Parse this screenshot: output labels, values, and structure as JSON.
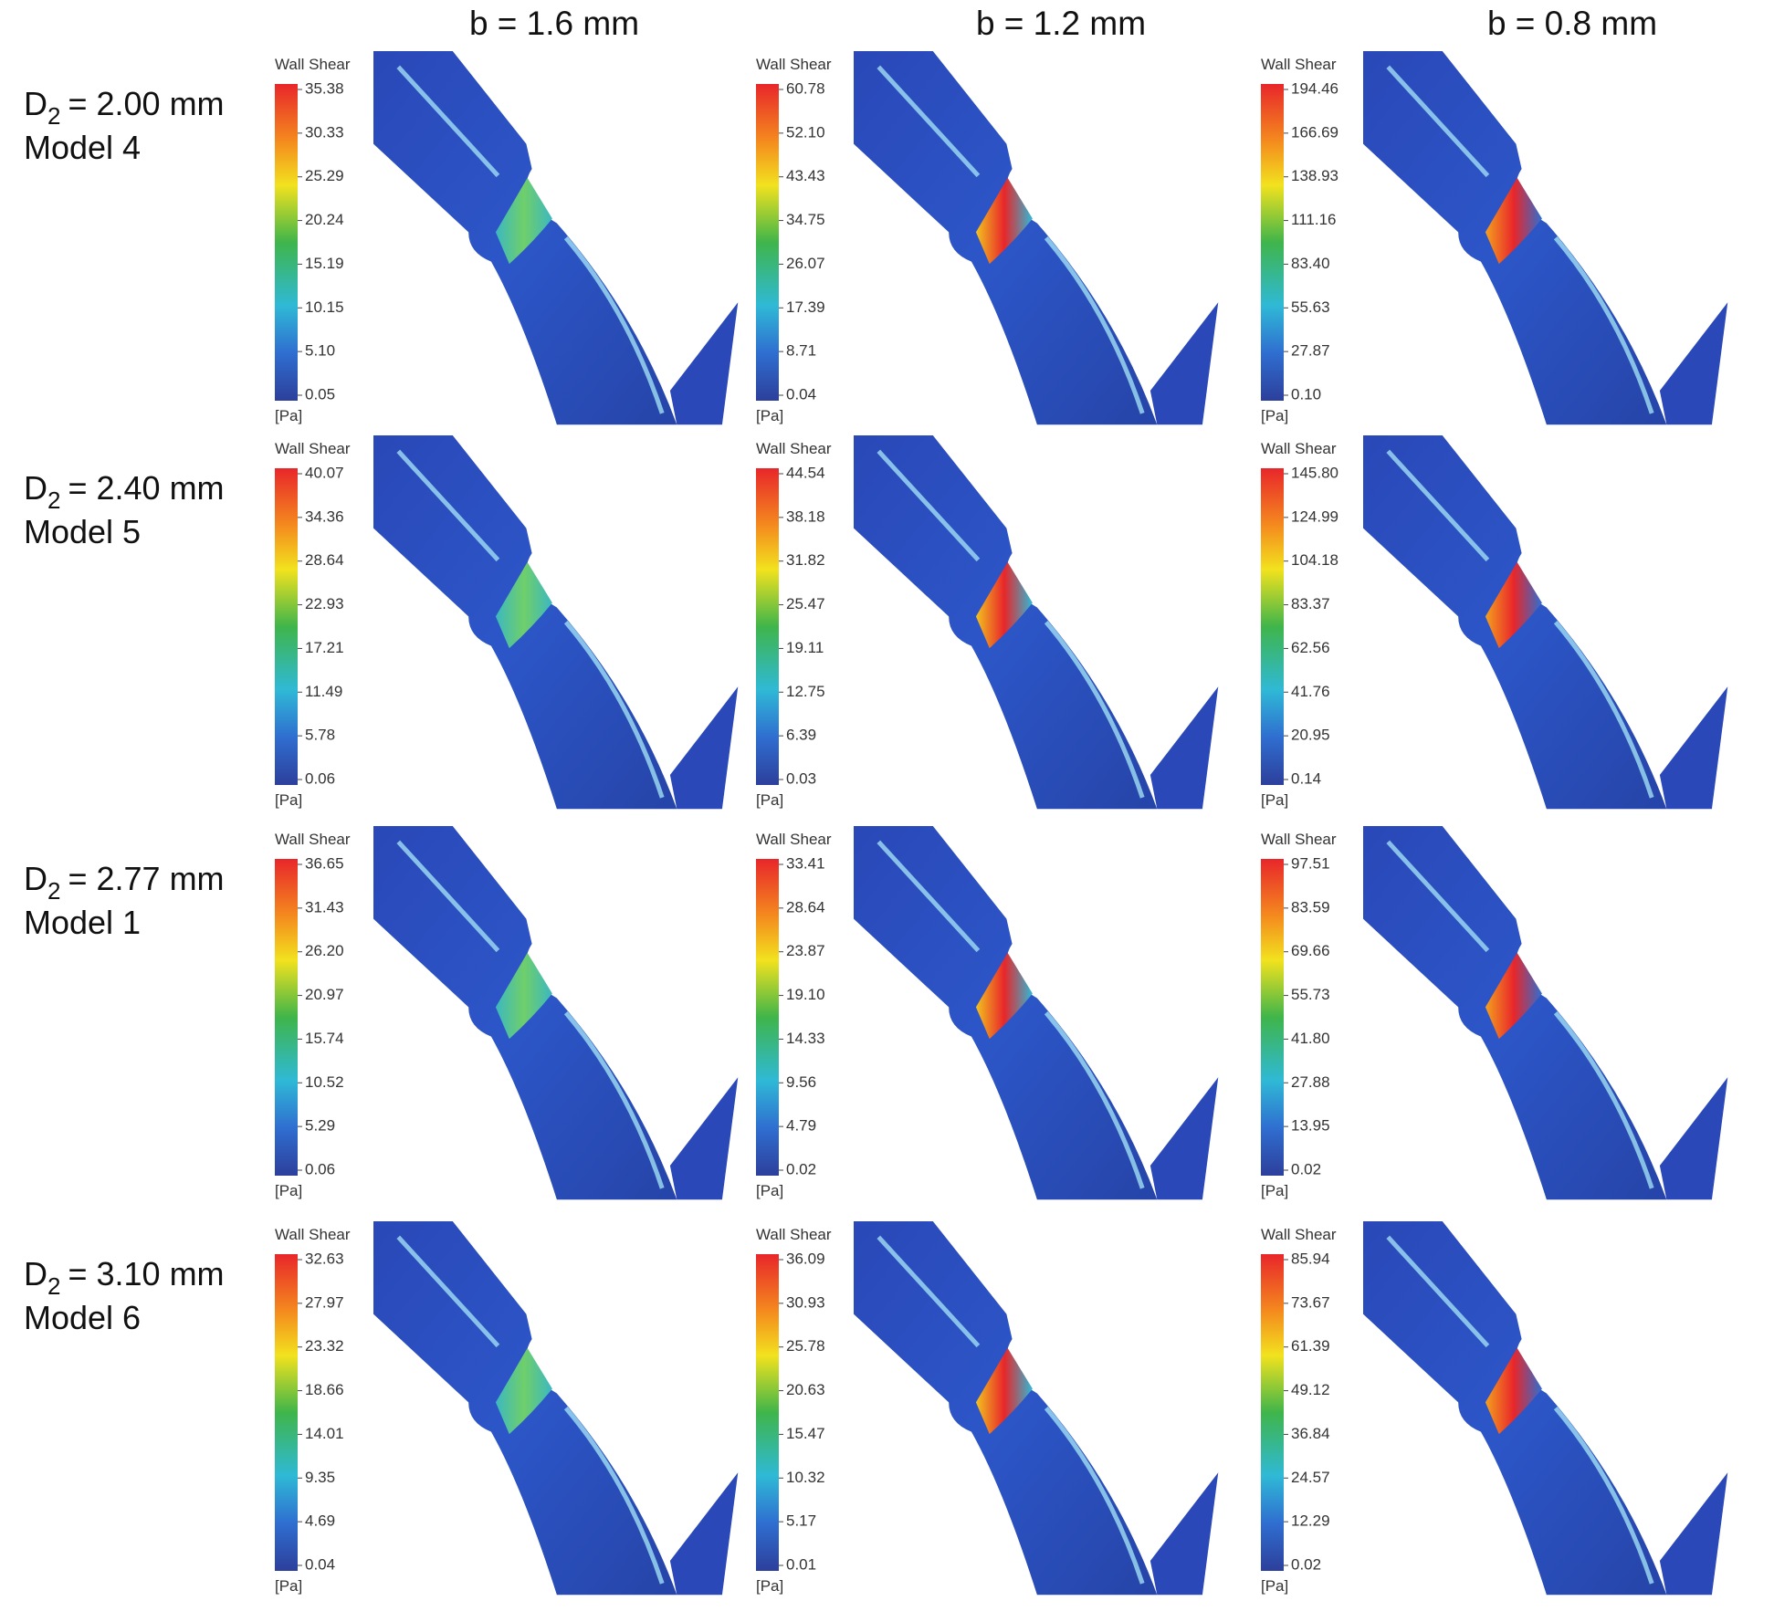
{
  "column_headers": [
    "b = 1.6 mm",
    "b = 1.2 mm",
    "b = 0.8 mm"
  ],
  "rows": [
    {
      "label": {
        "symbol": "D",
        "subscript": "2",
        "text": "= 2.00 mm"
      },
      "model": "Model 4",
      "panels": [
        {
          "legend_title": "Wall Shear",
          "unit": "[Pa]",
          "ticks": [
            "35.38",
            "30.33",
            "25.29",
            "20.24",
            "15.19",
            "10.15",
            "5.10",
            "0.05"
          ]
        },
        {
          "legend_title": "Wall Shear",
          "unit": "[Pa]",
          "ticks": [
            "60.78",
            "52.10",
            "43.43",
            "34.75",
            "26.07",
            "17.39",
            "8.71",
            "0.04"
          ]
        },
        {
          "legend_title": "Wall Shear",
          "unit": "[Pa]",
          "ticks": [
            "194.46",
            "166.69",
            "138.93",
            "111.16",
            "83.40",
            "55.63",
            "27.87",
            "0.10"
          ]
        }
      ]
    },
    {
      "label": {
        "symbol": "D",
        "subscript": "2",
        "text": "= 2.40 mm"
      },
      "model": "Model 5",
      "panels": [
        {
          "legend_title": "Wall Shear",
          "unit": "[Pa]",
          "ticks": [
            "40.07",
            "34.36",
            "28.64",
            "22.93",
            "17.21",
            "11.49",
            "5.78",
            "0.06"
          ]
        },
        {
          "legend_title": "Wall Shear",
          "unit": "[Pa]",
          "ticks": [
            "44.54",
            "38.18",
            "31.82",
            "25.47",
            "19.11",
            "12.75",
            "6.39",
            "0.03"
          ]
        },
        {
          "legend_title": "Wall Shear",
          "unit": "[Pa]",
          "ticks": [
            "145.80",
            "124.99",
            "104.18",
            "83.37",
            "62.56",
            "41.76",
            "20.95",
            "0.14"
          ]
        }
      ]
    },
    {
      "label": {
        "symbol": "D",
        "subscript": "2",
        "text": "= 2.77 mm"
      },
      "model": "Model 1",
      "panels": [
        {
          "legend_title": "Wall Shear",
          "unit": "[Pa]",
          "ticks": [
            "36.65",
            "31.43",
            "26.20",
            "20.97",
            "15.74",
            "10.52",
            "5.29",
            "0.06"
          ]
        },
        {
          "legend_title": "Wall Shear",
          "unit": "[Pa]",
          "ticks": [
            "33.41",
            "28.64",
            "23.87",
            "19.10",
            "14.33",
            "9.56",
            "4.79",
            "0.02"
          ]
        },
        {
          "legend_title": "Wall Shear",
          "unit": "[Pa]",
          "ticks": [
            "97.51",
            "83.59",
            "69.66",
            "55.73",
            "41.80",
            "27.88",
            "13.95",
            "0.02"
          ]
        }
      ]
    },
    {
      "label": {
        "symbol": "D",
        "subscript": "2",
        "text": "= 3.10 mm"
      },
      "model": "Model 6",
      "panels": [
        {
          "legend_title": "Wall Shear",
          "unit": "[Pa]",
          "ticks": [
            "32.63",
            "27.97",
            "23.32",
            "18.66",
            "14.01",
            "9.35",
            "4.69",
            "0.04"
          ]
        },
        {
          "legend_title": "Wall Shear",
          "unit": "[Pa]",
          "ticks": [
            "36.09",
            "30.93",
            "25.78",
            "20.63",
            "15.47",
            "10.32",
            "5.17",
            "0.01"
          ]
        },
        {
          "legend_title": "Wall Shear",
          "unit": "[Pa]",
          "ticks": [
            "85.94",
            "73.67",
            "61.39",
            "49.12",
            "36.84",
            "24.57",
            "12.29",
            "0.02"
          ]
        }
      ]
    }
  ]
}
